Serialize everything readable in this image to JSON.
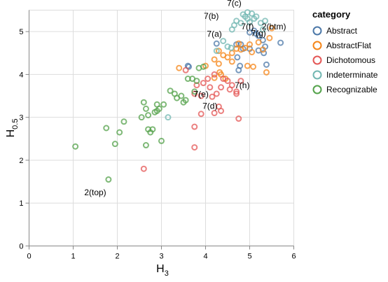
{
  "chart_data": {
    "type": "scatter",
    "xlabel": {
      "main": "H",
      "sub": "3"
    },
    "ylabel": {
      "main": "H",
      "sub": "0.5"
    },
    "xlim": [
      0,
      6
    ],
    "ylim": [
      0,
      5.5
    ],
    "x_ticks": [
      "0",
      "1",
      "2",
      "3",
      "4",
      "5",
      "6"
    ],
    "y_ticks": [
      "0",
      "1",
      "2",
      "3",
      "4",
      "5"
    ],
    "grid": true,
    "legend": {
      "title": "category",
      "placement": "right",
      "entries": [
        "Abstract",
        "AbstractFlat",
        "Dichotomous",
        "Indeterminate",
        "Recognizable"
      ]
    },
    "colors": {
      "Abstract": "#4c78a8",
      "AbstractFlat": "#f58518",
      "Dichotomous": "#e45756",
      "Indeterminate": "#72b7b2",
      "Recognizable": "#54a24b"
    },
    "series": [
      {
        "name": "Abstract",
        "points": [
          [
            3.6,
            4.2
          ],
          [
            3.62,
            4.18
          ],
          [
            4.25,
            4.72
          ],
          [
            4.7,
            4.7
          ],
          [
            4.8,
            4.7
          ],
          [
            5.0,
            4.98
          ],
          [
            5.1,
            5.02
          ],
          [
            5.15,
            4.95
          ],
          [
            5.2,
            4.9
          ],
          [
            5.3,
            4.8
          ],
          [
            5.35,
            4.65
          ],
          [
            5.0,
            4.6
          ],
          [
            5.2,
            4.56
          ],
          [
            4.72,
            4.4
          ],
          [
            4.78,
            4.2
          ],
          [
            4.75,
            4.1
          ],
          [
            5.38,
            4.23
          ],
          [
            5.7,
            4.74
          ],
          [
            5.32,
            4.5
          ],
          [
            4.85,
            4.6
          ]
        ]
      },
      {
        "name": "AbstractFlat",
        "points": [
          [
            3.4,
            4.15
          ],
          [
            4.0,
            4.2
          ],
          [
            4.2,
            4.35
          ],
          [
            4.3,
            4.25
          ],
          [
            4.5,
            4.4
          ],
          [
            4.3,
            4.55
          ],
          [
            4.4,
            4.45
          ],
          [
            4.6,
            4.5
          ],
          [
            4.7,
            4.6
          ],
          [
            4.75,
            4.72
          ],
          [
            4.8,
            4.58
          ],
          [
            4.9,
            4.62
          ],
          [
            5.0,
            4.7
          ],
          [
            5.05,
            4.52
          ],
          [
            5.2,
            4.75
          ],
          [
            5.3,
            4.58
          ],
          [
            4.95,
            4.2
          ],
          [
            5.08,
            4.18
          ],
          [
            5.38,
            4.05
          ],
          [
            4.2,
            3.92
          ],
          [
            4.32,
            4.05
          ],
          [
            4.35,
            4.0
          ],
          [
            4.45,
            3.9
          ],
          [
            4.6,
            4.3
          ],
          [
            5.45,
            4.85
          ],
          [
            5.5,
            5.08
          ]
        ]
      },
      {
        "name": "Dichotomous",
        "points": [
          [
            2.6,
            1.8
          ],
          [
            3.55,
            4.1
          ],
          [
            3.8,
            3.75
          ],
          [
            3.75,
            3.55
          ],
          [
            3.9,
            3.5
          ],
          [
            3.95,
            3.8
          ],
          [
            4.05,
            3.9
          ],
          [
            4.1,
            3.7
          ],
          [
            4.15,
            3.48
          ],
          [
            4.25,
            3.55
          ],
          [
            4.35,
            3.7
          ],
          [
            4.4,
            3.9
          ],
          [
            4.5,
            3.85
          ],
          [
            4.55,
            3.65
          ],
          [
            4.6,
            3.75
          ],
          [
            4.7,
            3.6
          ],
          [
            4.8,
            3.85
          ],
          [
            4.2,
            3.1
          ],
          [
            4.3,
            3.25
          ],
          [
            4.35,
            3.15
          ],
          [
            3.9,
            3.08
          ],
          [
            3.75,
            2.78
          ],
          [
            3.75,
            2.3
          ],
          [
            4.75,
            2.97
          ],
          [
            4.7,
            3.55
          ],
          [
            4.2,
            4.0
          ]
        ]
      },
      {
        "name": "Indeterminate",
        "points": [
          [
            3.15,
            3.0
          ],
          [
            4.25,
            4.55
          ],
          [
            4.4,
            4.78
          ],
          [
            4.5,
            4.65
          ],
          [
            4.58,
            4.62
          ],
          [
            4.6,
            5.05
          ],
          [
            4.65,
            5.15
          ],
          [
            4.7,
            5.25
          ],
          [
            4.8,
            5.2
          ],
          [
            4.9,
            5.35
          ],
          [
            4.95,
            5.45
          ],
          [
            5.05,
            5.42
          ],
          [
            5.1,
            5.3
          ],
          [
            5.15,
            5.35
          ],
          [
            5.25,
            5.2
          ],
          [
            5.35,
            5.25
          ],
          [
            5.3,
            5.05
          ],
          [
            5.0,
            5.22
          ],
          [
            4.85,
            5.4
          ],
          [
            4.95,
            5.3
          ]
        ]
      },
      {
        "name": "Recognizable",
        "points": [
          [
            1.05,
            2.32
          ],
          [
            1.75,
            2.75
          ],
          [
            1.8,
            1.55
          ],
          [
            1.95,
            2.38
          ],
          [
            2.05,
            2.65
          ],
          [
            2.15,
            2.9
          ],
          [
            2.55,
            3.0
          ],
          [
            2.6,
            3.35
          ],
          [
            2.65,
            3.2
          ],
          [
            2.7,
            3.05
          ],
          [
            2.65,
            2.35
          ],
          [
            2.7,
            2.72
          ],
          [
            2.75,
            2.65
          ],
          [
            2.8,
            2.72
          ],
          [
            2.85,
            3.12
          ],
          [
            2.9,
            3.3
          ],
          [
            2.9,
            3.15
          ],
          [
            2.95,
            3.2
          ],
          [
            3.0,
            2.45
          ],
          [
            3.05,
            3.3
          ],
          [
            3.2,
            3.62
          ],
          [
            3.3,
            3.55
          ],
          [
            3.35,
            3.45
          ],
          [
            3.45,
            3.5
          ],
          [
            3.5,
            3.35
          ],
          [
            3.55,
            3.4
          ],
          [
            3.6,
            3.9
          ],
          [
            3.7,
            3.9
          ],
          [
            3.85,
            4.15
          ],
          [
            3.95,
            4.18
          ],
          [
            3.75,
            3.6
          ],
          [
            3.8,
            3.85
          ]
        ]
      }
    ],
    "annotations": [
      {
        "text": "7(c)",
        "x": 4.65,
        "y": 5.6
      },
      {
        "text": "7(b)",
        "x": 4.13,
        "y": 5.3
      },
      {
        "text": "2(btm)",
        "x": 5.55,
        "y": 5.05
      },
      {
        "text": "7(f)",
        "x": 4.95,
        "y": 5.05
      },
      {
        "text": "7(a)",
        "x": 4.2,
        "y": 4.88
      },
      {
        "text": "7(g)",
        "x": 5.2,
        "y": 4.9
      },
      {
        "text": "7(h)",
        "x": 4.83,
        "y": 3.68
      },
      {
        "text": "7(e)",
        "x": 3.9,
        "y": 3.48
      },
      {
        "text": "7(d)",
        "x": 4.1,
        "y": 3.2
      },
      {
        "text": "2(top)",
        "x": 1.5,
        "y": 1.18
      }
    ]
  }
}
